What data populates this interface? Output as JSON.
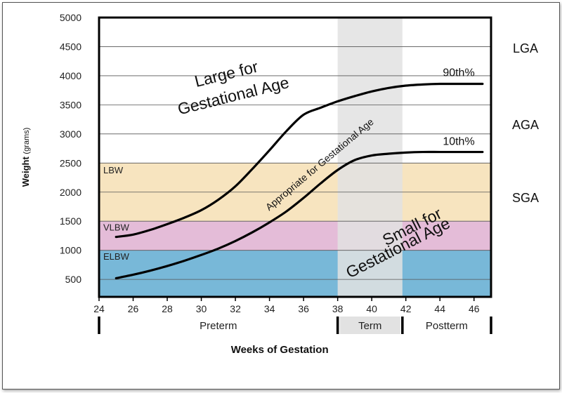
{
  "chart_data": {
    "type": "line",
    "xlabel": "Weeks of Gestation",
    "ylabel": "Weight",
    "ylabel_unit": "(grams)",
    "xlim": [
      24,
      47
    ],
    "ylim": [
      200,
      5000
    ],
    "x_ticks": [
      24,
      26,
      28,
      30,
      32,
      34,
      36,
      38,
      40,
      42,
      44,
      46
    ],
    "y_ticks": [
      500,
      1000,
      1500,
      2000,
      2500,
      3000,
      3500,
      4000,
      4500,
      5000
    ],
    "grid": true,
    "term_band": [
      38,
      41.8
    ],
    "weight_bands": [
      {
        "label": "LBW",
        "from": 1500,
        "to": 2500,
        "color": "#f7e4bf"
      },
      {
        "label": "VLBW",
        "from": 1000,
        "to": 1500,
        "color": "#e4bcd8"
      },
      {
        "label": "ELBW",
        "from": 200,
        "to": 1000,
        "color": "#78b8d8"
      }
    ],
    "series": [
      {
        "name": "90th%",
        "x": [
          25,
          26,
          27,
          28,
          29,
          30,
          31,
          32,
          33,
          34,
          35,
          36,
          37,
          38,
          39,
          40,
          41,
          42,
          43,
          44,
          45,
          46.5
        ],
        "values": [
          1230,
          1270,
          1350,
          1450,
          1560,
          1690,
          1870,
          2100,
          2400,
          2720,
          3050,
          3330,
          3450,
          3560,
          3650,
          3730,
          3790,
          3830,
          3850,
          3860,
          3860,
          3860
        ]
      },
      {
        "name": "10th%",
        "x": [
          25,
          26,
          27,
          28,
          29,
          30,
          31,
          32,
          33,
          34,
          35,
          36,
          37,
          38,
          39,
          40,
          41,
          42,
          43,
          44,
          45,
          46.5
        ],
        "values": [
          520,
          580,
          650,
          730,
          820,
          920,
          1030,
          1160,
          1310,
          1480,
          1670,
          1900,
          2150,
          2380,
          2550,
          2630,
          2660,
          2680,
          2690,
          2690,
          2690,
          2690
        ]
      }
    ],
    "categories_right": [
      "LGA",
      "AGA",
      "SGA"
    ],
    "annotations": {
      "large": [
        "Large for",
        "Gestational Age"
      ],
      "appropriate": "Appropriate for Gestational Age",
      "small": [
        "Small for",
        "Gestational Age"
      ]
    },
    "periods": [
      "Preterm",
      "Term",
      "Postterm"
    ]
  },
  "colors": {
    "term_band": "#e2e2e2",
    "axis": "#000000",
    "gridline": "#555555",
    "curve": "#000000"
  }
}
